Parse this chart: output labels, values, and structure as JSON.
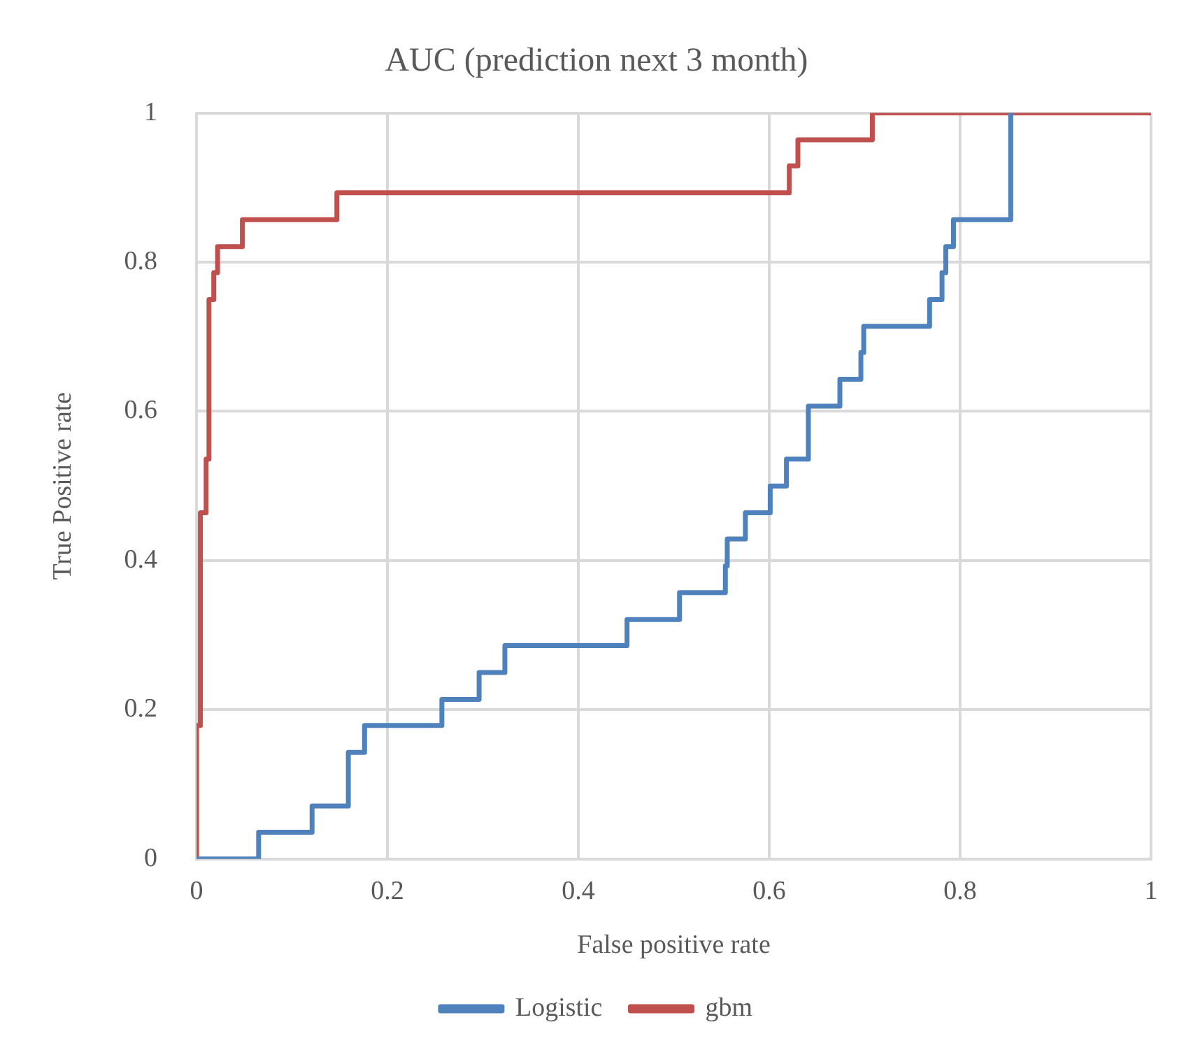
{
  "chart_data": {
    "type": "step",
    "title": "AUC (prediction next 3 month)",
    "xlabel": "False positive rate",
    "ylabel": "True Positive rate",
    "xlim": [
      0,
      1
    ],
    "xticks": [
      0,
      0.2,
      0.4,
      0.6,
      0.8,
      1
    ],
    "ylim": [
      0,
      1
    ],
    "yticks": [
      0,
      0.2,
      0.4,
      0.6,
      0.8,
      1
    ],
    "grid": true,
    "legend": "bottom",
    "marker": "none",
    "line_style": "solid",
    "series": [
      {
        "name": "Logistic",
        "color": "#4f81bd",
        "x": [
          0,
          0.065,
          0.121,
          0.159,
          0.176,
          0.257,
          0.296,
          0.323,
          0.451,
          0.506,
          0.554,
          0.556,
          0.575,
          0.601,
          0.618,
          0.641,
          0.674,
          0.696,
          0.699,
          0.768,
          0.781,
          0.785,
          0.793,
          0.853
        ],
        "values": [
          0,
          0.036,
          0.071,
          0.143,
          0.179,
          0.214,
          0.25,
          0.286,
          0.321,
          0.357,
          0.393,
          0.429,
          0.464,
          0.5,
          0.536,
          0.607,
          0.643,
          0.679,
          0.714,
          0.75,
          0.786,
          0.821,
          0.857,
          1
        ]
      },
      {
        "name": "gbm",
        "color": "#c0504d",
        "x": [
          0,
          0,
          0.004,
          0.01,
          0.013,
          0.018,
          0.022,
          0.048,
          0.147,
          0.621,
          0.63,
          0.708,
          1
        ],
        "values": [
          0,
          0.179,
          0.464,
          0.536,
          0.75,
          0.786,
          0.821,
          0.857,
          0.893,
          0.929,
          0.964,
          1,
          1
        ]
      }
    ]
  }
}
